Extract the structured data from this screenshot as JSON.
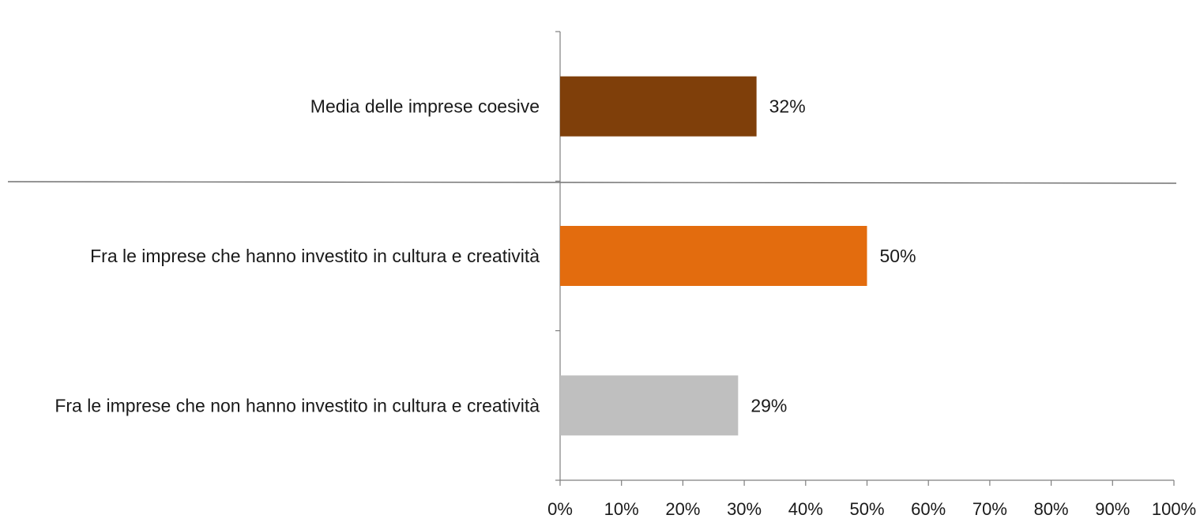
{
  "chart_data": {
    "type": "bar",
    "orientation": "horizontal",
    "categories": [
      "Media delle imprese coesive",
      "Fra le imprese che hanno investito in cultura e creatività",
      "Fra le imprese che non hanno investito in cultura e creatività"
    ],
    "values": [
      32,
      50,
      29
    ],
    "data_labels": [
      "32%",
      "50%",
      "29%"
    ],
    "colors": [
      "#7f3f0a",
      "#e36c0e",
      "#bfbfbf"
    ],
    "xlim": [
      0,
      100
    ],
    "x_ticks": [
      "0%",
      "10%",
      "20%",
      "30%",
      "40%",
      "50%",
      "60%",
      "70%",
      "80%",
      "90%",
      "100%"
    ],
    "grid": false,
    "separator_line": true,
    "title": "",
    "xlabel": "",
    "ylabel": ""
  }
}
